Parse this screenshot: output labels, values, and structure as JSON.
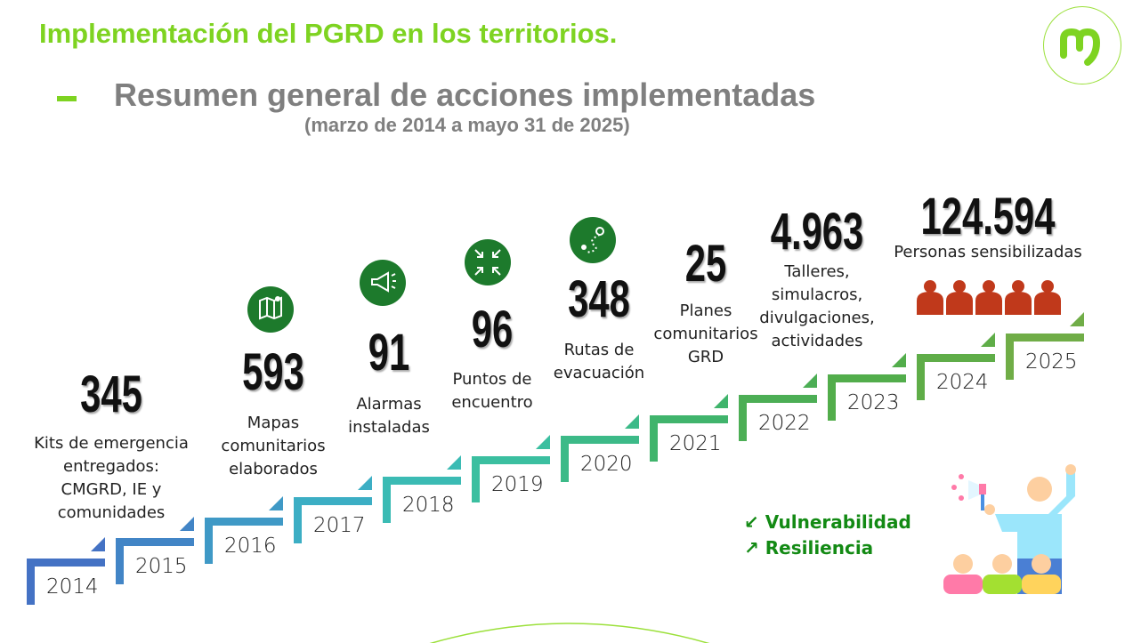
{
  "header": {
    "title": "Implementación del PGRD en los territorios.",
    "subtitle": "Resumen general de acciones implementadas",
    "period": "(marzo de 2014 a mayo 31 de 2025)",
    "logo_text": "m"
  },
  "steps": [
    {
      "year": "2014",
      "color": "#4472c4"
    },
    {
      "year": "2015",
      "color": "#4285c6"
    },
    {
      "year": "2016",
      "color": "#3f99c6"
    },
    {
      "year": "2017",
      "color": "#3caec4"
    },
    {
      "year": "2018",
      "color": "#3bbbb4"
    },
    {
      "year": "2019",
      "color": "#3bbfa0"
    },
    {
      "year": "2020",
      "color": "#3cba88"
    },
    {
      "year": "2021",
      "color": "#40b46c"
    },
    {
      "year": "2022",
      "color": "#4cae55"
    },
    {
      "year": "2023",
      "color": "#52ad4b"
    },
    {
      "year": "2024",
      "color": "#5fad48"
    },
    {
      "year": "2025",
      "color": "#70ad47"
    }
  ],
  "stats": [
    {
      "value": "345",
      "label": "Kits de emergencia\nentregados:\nCMGRD, IE y\ncomunidades",
      "icon": ""
    },
    {
      "value": "593",
      "label": "Mapas\ncomunitarios\nelaborados",
      "icon": "map-icon"
    },
    {
      "value": "91",
      "label": "Alarmas\ninstaladas",
      "icon": "megaphone-icon"
    },
    {
      "value": "96",
      "label": "Puntos de\nencuentro",
      "icon": "meeting-point-icon"
    },
    {
      "value": "348",
      "label": "Rutas de\nevacuación",
      "icon": "route-icon"
    },
    {
      "value": "25",
      "label": "Planes\ncomunitarios\nGRD",
      "icon": ""
    },
    {
      "value": "4.963",
      "label": "Talleres,\nsimulacros,\ndivulgaciones,\nactividades",
      "icon": ""
    },
    {
      "value": "124.594",
      "label": "Personas sensibilizadas",
      "icon": "people-icon"
    }
  ],
  "legend": {
    "items": [
      {
        "arrow": "↙",
        "label": "Vulnerabilidad"
      },
      {
        "arrow": "↗",
        "label": "Resiliencia"
      }
    ],
    "color": "#138a14"
  },
  "colors": {
    "accent": "#7ed321",
    "icon_bg": "#1d7a2c",
    "people": "#c0391b"
  }
}
